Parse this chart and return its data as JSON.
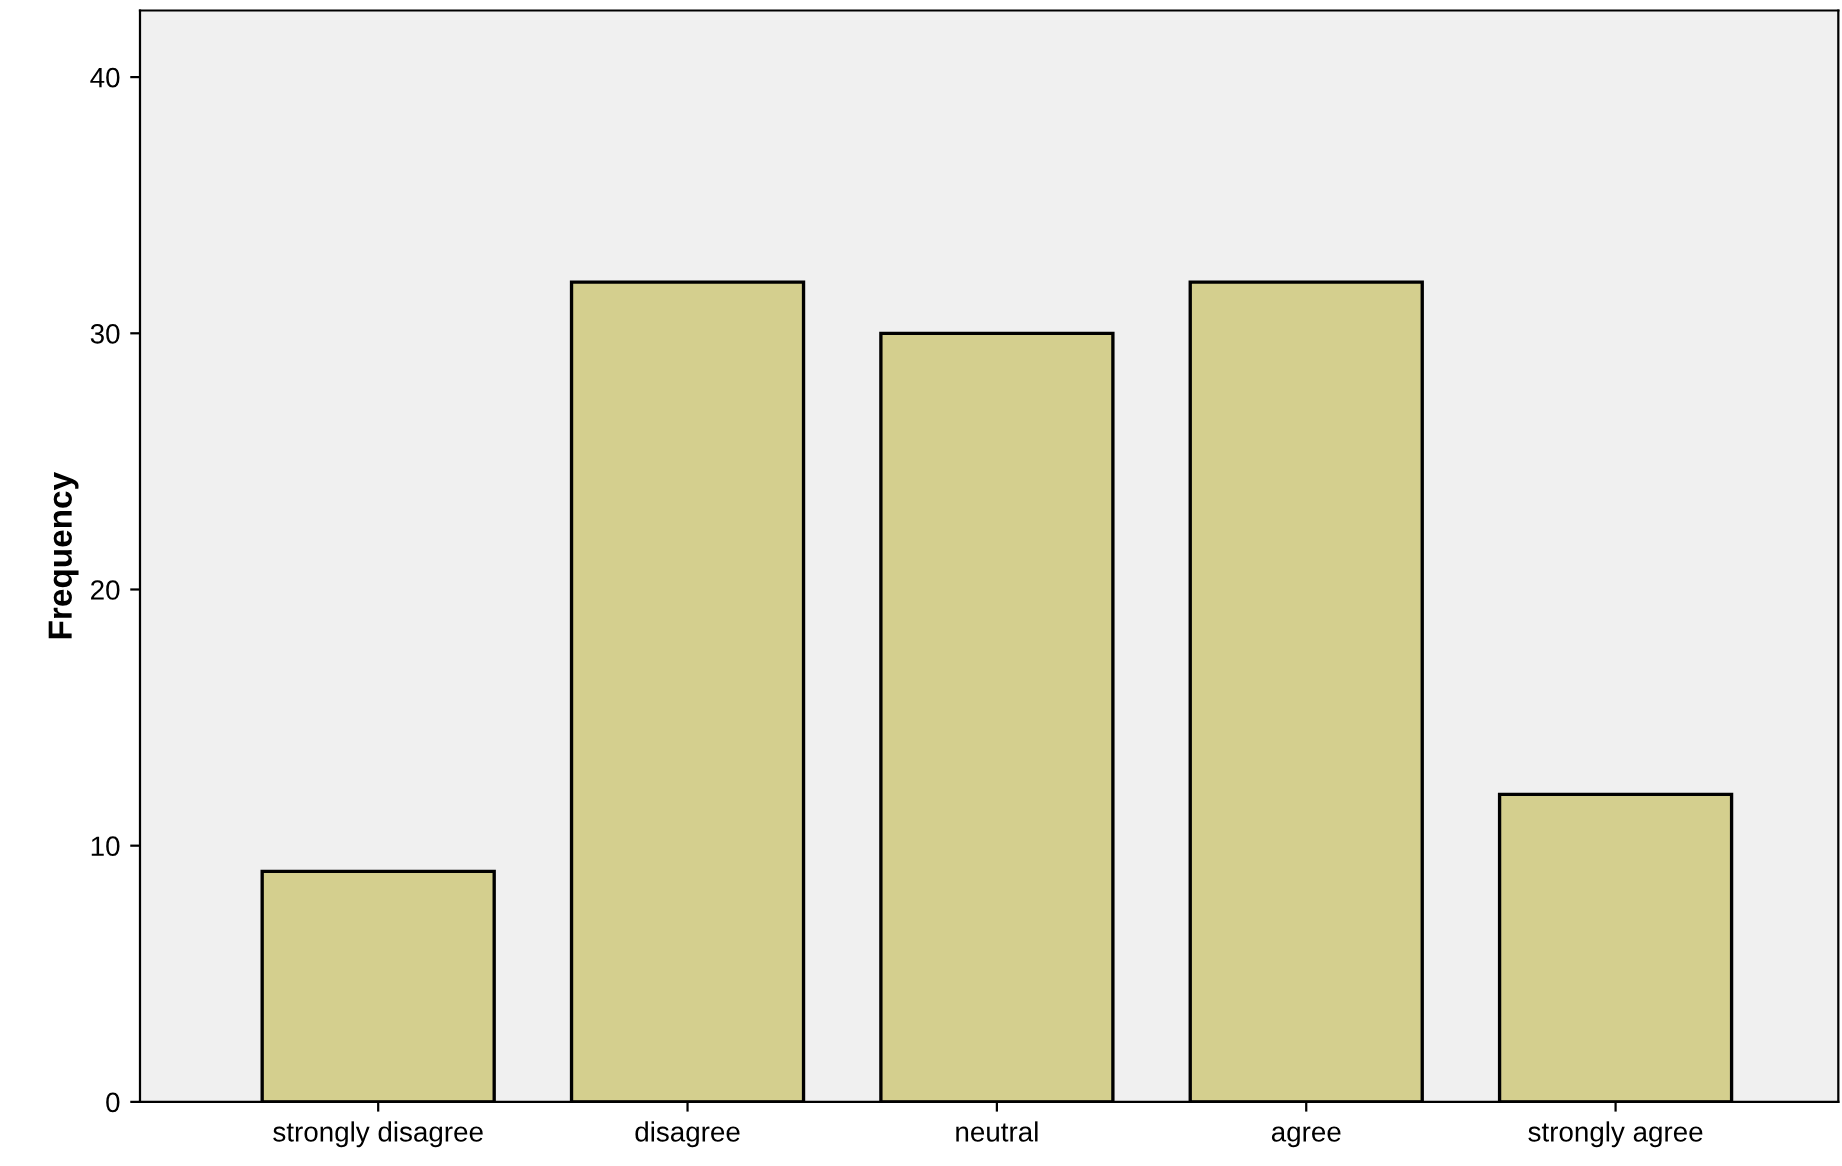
{
  "chart_data": {
    "type": "bar",
    "ylabel": "Frequency",
    "categories": [
      "strongly disagree",
      "disagree",
      "neutral",
      "agree",
      "strongly agree"
    ],
    "values": [
      9,
      32,
      30,
      32,
      12
    ],
    "color": "#d4cf8e",
    "ylim": [
      0,
      42.6
    ],
    "yticks": [
      0,
      10,
      20,
      30,
      40
    ],
    "grid": false
  }
}
